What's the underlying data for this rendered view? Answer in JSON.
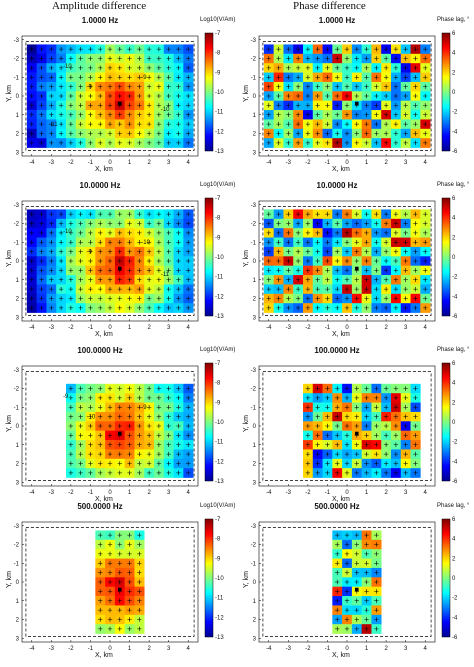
{
  "figure": {
    "left_title": "Amplitude difference",
    "right_title": "Phase difference"
  },
  "colors": {
    "jet": [
      "#00008f",
      "#0000ff",
      "#0080ff",
      "#00ffff",
      "#80ff80",
      "#ffff00",
      "#ff8000",
      "#ff0000",
      "#800000"
    ],
    "box": "#000000",
    "plus": "#000000"
  },
  "chart_data": [
    {
      "type": "heatmap",
      "column": "left",
      "title": "1.0000 Hz",
      "xlabel": "X, km",
      "ylabel": "Y, km",
      "colorbar_label": "Log10(V/Am)",
      "clim": [
        -13,
        -7
      ],
      "cbar_ticks": [
        "-7",
        "-8",
        "-9",
        "-10",
        "-11",
        "-12",
        "-13"
      ],
      "xlim": [
        -4.5,
        4.5
      ],
      "ylim": [
        -3.2,
        3.2
      ],
      "grid_x": [
        -4,
        4
      ],
      "grid_y": [
        -2.5,
        2.5
      ],
      "contour_labels": [
        "-10",
        "-9",
        "-9",
        "-10",
        "-11"
      ]
    },
    {
      "type": "heatmap",
      "column": "right",
      "title": "1.0000 Hz",
      "xlabel": "X, km",
      "ylabel": "Y, km",
      "colorbar_label": "Phase lag, °",
      "clim": [
        -6,
        6
      ],
      "cbar_ticks": [
        "6",
        "4",
        "2",
        "0",
        "-2",
        "-4",
        "-6"
      ],
      "xlim": [
        -4.5,
        4.5
      ],
      "ylim": [
        -3.2,
        3.2
      ],
      "grid_x": [
        -4,
        4
      ],
      "grid_y": [
        -2.5,
        2.5
      ]
    },
    {
      "type": "heatmap",
      "column": "left",
      "title": "10.0000 Hz",
      "xlabel": "X, km",
      "ylabel": "Y, km",
      "colorbar_label": "Log10(V/Am)",
      "clim": [
        -13,
        -7
      ],
      "cbar_ticks": [
        "-7",
        "-8",
        "-9",
        "-10",
        "-11",
        "-12",
        "-13"
      ],
      "xlim": [
        -4.5,
        4.5
      ],
      "ylim": [
        -3.2,
        3.2
      ],
      "grid_x": [
        -4,
        4
      ],
      "grid_y": [
        -2.5,
        2.5
      ],
      "contour_labels": [
        "-10",
        "-9",
        "-10",
        "-11"
      ]
    },
    {
      "type": "heatmap",
      "column": "right",
      "title": "10.0000 Hz",
      "xlabel": "X, km",
      "ylabel": "Y, km",
      "colorbar_label": "Phase lag, °",
      "clim": [
        -6,
        6
      ],
      "cbar_ticks": [
        "6",
        "4",
        "2",
        "0",
        "-2",
        "-4",
        "-6"
      ],
      "xlim": [
        -4.5,
        4.5
      ],
      "ylim": [
        -3.2,
        3.2
      ],
      "grid_x": [
        -4,
        4
      ],
      "grid_y": [
        -2.5,
        2.5
      ]
    },
    {
      "type": "heatmap",
      "column": "left",
      "title": "100.0000 Hz",
      "xlabel": "X, km",
      "ylabel": "Y, km",
      "colorbar_label": "Log10(V/Am)",
      "clim": [
        -13,
        -7
      ],
      "cbar_ticks": [
        "-7",
        "-8",
        "-9",
        "-10",
        "-11",
        "-12",
        "-13"
      ],
      "xlim": [
        -4.5,
        4.5
      ],
      "ylim": [
        -3.2,
        3.2
      ],
      "grid_x": [
        -2,
        4
      ],
      "grid_y": [
        -2,
        2.5
      ],
      "contour_labels": [
        "-9",
        "-10",
        "-9"
      ]
    },
    {
      "type": "heatmap",
      "column": "right",
      "title": "100.0000 Hz",
      "xlabel": "X, km",
      "ylabel": "Y, km",
      "colorbar_label": "Phase lag, °",
      "clim": [
        -6,
        6
      ],
      "cbar_ticks": [
        "6",
        "4",
        "2",
        "0",
        "-2",
        "-4",
        "-6"
      ],
      "xlim": [
        -4.5,
        4.5
      ],
      "ylim": [
        -3.2,
        3.2
      ],
      "grid_x": [
        -2,
        3.5
      ],
      "grid_y": [
        -2,
        2.5
      ]
    },
    {
      "type": "heatmap",
      "column": "left",
      "title": "500.0000 Hz",
      "xlabel": "X, km",
      "ylabel": "Y, km",
      "colorbar_label": "Log10(V/Am)",
      "clim": [
        -13,
        -7
      ],
      "cbar_ticks": [
        "-7",
        "-8",
        "-9",
        "-10",
        "-11",
        "-12",
        "-13"
      ],
      "xlim": [
        -4.5,
        4.5
      ],
      "ylim": [
        -3.2,
        3.2
      ],
      "grid_x": [
        -0.5,
        1.5
      ],
      "grid_y": [
        -2.5,
        2.5
      ],
      "contour_labels": []
    },
    {
      "type": "heatmap",
      "column": "right",
      "title": "500.0000 Hz",
      "xlabel": "X, km",
      "ylabel": "Y, km",
      "colorbar_label": "Phase lag, °",
      "clim": [
        -6,
        6
      ],
      "cbar_ticks": [
        "6",
        "4",
        "2",
        "0",
        "-2",
        "-4",
        "-6"
      ],
      "xlim": [
        -4.5,
        4.5
      ],
      "ylim": [
        -3.2,
        3.2
      ],
      "grid_x": [
        -0.5,
        1.5
      ],
      "grid_y": [
        -2.5,
        2.5
      ]
    }
  ],
  "axes": {
    "x_ticks": [
      "-4",
      "-3",
      "-2",
      "-1",
      "0",
      "1",
      "2",
      "3",
      "4"
    ],
    "y_ticks": [
      "-3",
      "-2",
      "-1",
      "0",
      "1",
      "2",
      "3"
    ]
  }
}
